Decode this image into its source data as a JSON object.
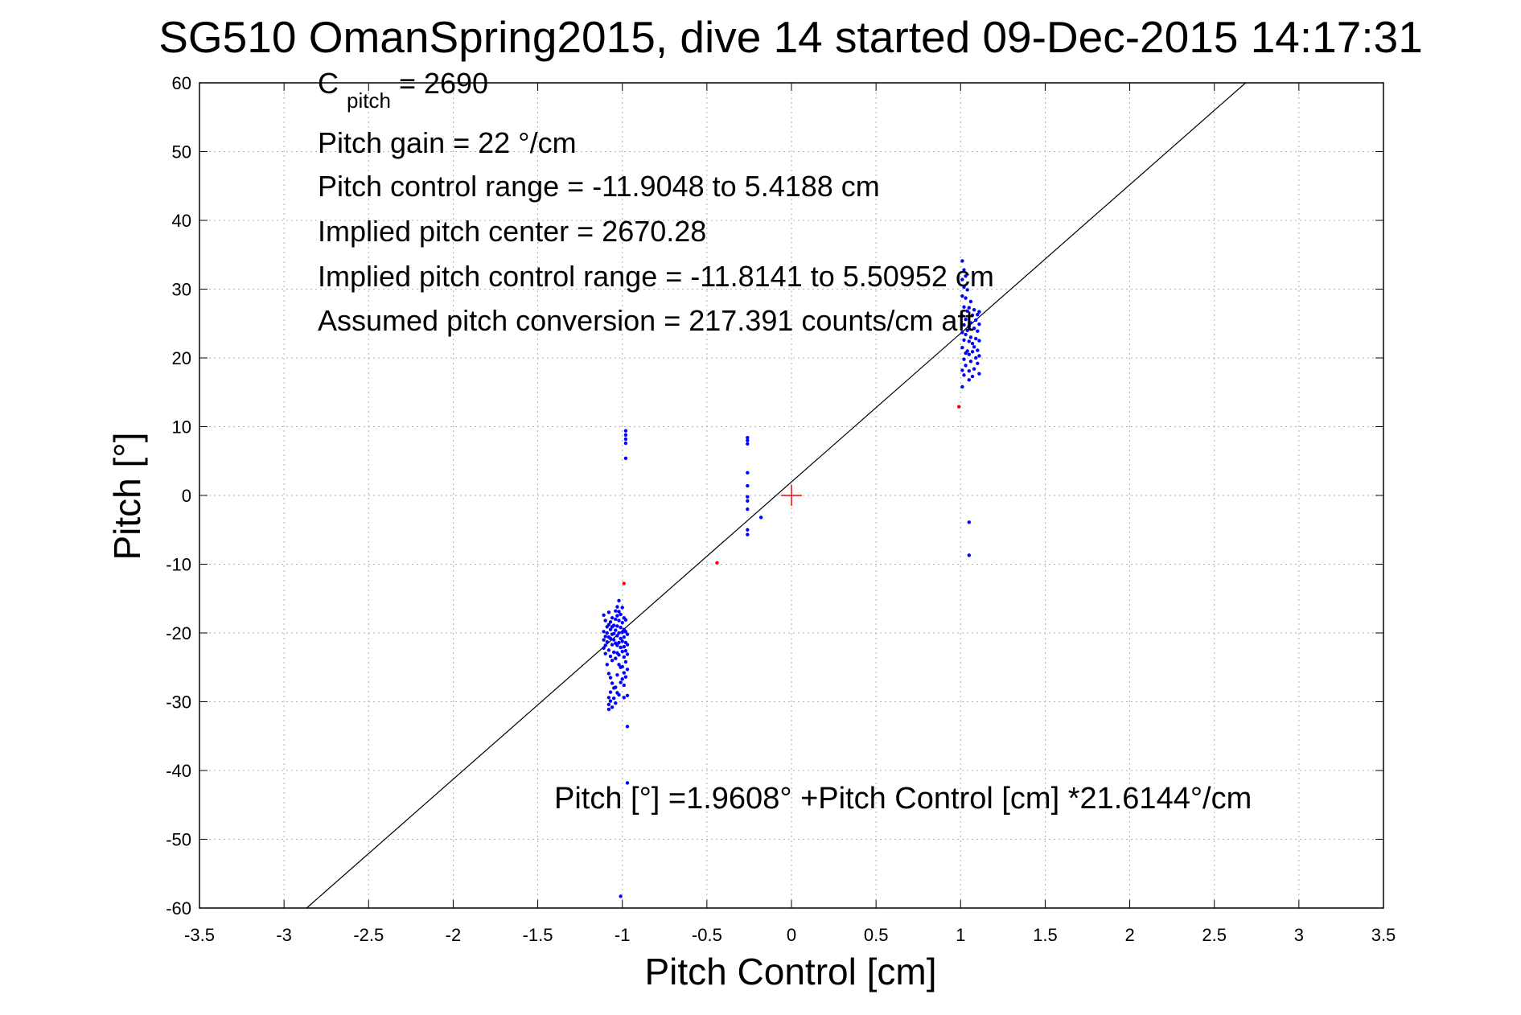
{
  "chart_data": {
    "type": "scatter",
    "title": "SG510 OmanSpring2015, dive 14 started 09-Dec-2015 14:17:31",
    "xlabel": "Pitch Control [cm]",
    "ylabel": "Pitch [°]",
    "xlim": [
      -3.5,
      3.5
    ],
    "ylim": [
      -60,
      60
    ],
    "xticks": [
      -3.5,
      -3,
      -2.5,
      -2,
      -1.5,
      -1,
      -0.5,
      0,
      0.5,
      1,
      1.5,
      2,
      2.5,
      3,
      3.5
    ],
    "yticks": [
      -60,
      -50,
      -40,
      -30,
      -20,
      -10,
      0,
      10,
      20,
      30,
      40,
      50,
      60
    ],
    "xtick_labels": [
      "-3.5",
      "-3",
      "-2.5",
      "-2",
      "-1.5",
      "-1",
      "-0.5",
      "0",
      "0.5",
      "1",
      "1.5",
      "2",
      "2.5",
      "3",
      "3.5"
    ],
    "ytick_labels": [
      "-60",
      "-50",
      "-40",
      "-30",
      "-20",
      "-10",
      "0",
      "10",
      "20",
      "30",
      "40",
      "50",
      "60"
    ],
    "grid": true,
    "annotations": {
      "c_pitch": {
        "prefix": "C",
        "subscript": "pitch",
        "suffix": " = 2690"
      },
      "lines": [
        "Pitch gain = 22 °/cm",
        "Pitch control range = -11.9048 to 5.4188 cm",
        "Implied pitch center = 2670.28",
        "Implied pitch control range = -11.8141 to 5.50952 cm",
        "Assumed pitch conversion = 217.391 counts/cm aft"
      ],
      "equation": "Pitch [°] =1.9608° +Pitch Control [cm] *21.6144°/cm"
    },
    "fit_line": {
      "intercept": 1.9608,
      "slope": 21.6144,
      "color": "#000000"
    },
    "center_marker": {
      "x": 0,
      "y": 0,
      "color": "#ff0000"
    },
    "series": [
      {
        "color": "#0000ff",
        "points": [
          [
            -1.11,
            -17.4
          ],
          [
            -1.11,
            -19.8
          ],
          [
            -1.11,
            -21.0
          ],
          [
            -1.11,
            -22.2
          ],
          [
            -1.1,
            -18.2
          ],
          [
            -1.1,
            -20.5
          ],
          [
            -1.1,
            -21.8
          ],
          [
            -1.1,
            -23.0
          ],
          [
            -1.09,
            -19.1
          ],
          [
            -1.09,
            -20.0
          ],
          [
            -1.09,
            -21.3
          ],
          [
            -1.09,
            -24.6
          ],
          [
            -1.08,
            -17.0
          ],
          [
            -1.08,
            -18.8
          ],
          [
            -1.08,
            -20.6
          ],
          [
            -1.08,
            -22.5
          ],
          [
            -1.08,
            -25.9
          ],
          [
            -1.08,
            -29.4
          ],
          [
            -1.08,
            -30.4
          ],
          [
            -1.08,
            -31.1
          ],
          [
            -1.07,
            -18.4
          ],
          [
            -1.07,
            -19.5
          ],
          [
            -1.07,
            -20.8
          ],
          [
            -1.07,
            -23.4
          ],
          [
            -1.07,
            -26.5
          ],
          [
            -1.07,
            -28.6
          ],
          [
            -1.07,
            -29.9
          ],
          [
            -1.06,
            -17.8
          ],
          [
            -1.06,
            -19.1
          ],
          [
            -1.06,
            -20.2
          ],
          [
            -1.06,
            -21.7
          ],
          [
            -1.06,
            -24.0
          ],
          [
            -1.06,
            -27.3
          ],
          [
            -1.06,
            -30.8
          ],
          [
            -1.05,
            -18.9
          ],
          [
            -1.05,
            -20.1
          ],
          [
            -1.05,
            -21.0
          ],
          [
            -1.05,
            -22.8
          ],
          [
            -1.05,
            -28.0
          ],
          [
            -1.05,
            -29.5
          ],
          [
            -1.04,
            -16.8
          ],
          [
            -1.04,
            -18.0
          ],
          [
            -1.04,
            -19.6
          ],
          [
            -1.04,
            -21.5
          ],
          [
            -1.04,
            -23.7
          ],
          [
            -1.04,
            -27.9
          ],
          [
            -1.04,
            -30.2
          ],
          [
            -1.03,
            -16.2
          ],
          [
            -1.03,
            -17.5
          ],
          [
            -1.03,
            -19.0
          ],
          [
            -1.03,
            -20.4
          ],
          [
            -1.03,
            -21.8
          ],
          [
            -1.03,
            -22.9
          ],
          [
            -1.03,
            -26.1
          ],
          [
            -1.03,
            -28.7
          ],
          [
            -1.02,
            -15.3
          ],
          [
            -1.02,
            -16.9
          ],
          [
            -1.02,
            -18.2
          ],
          [
            -1.02,
            -20.0
          ],
          [
            -1.02,
            -21.4
          ],
          [
            -1.02,
            -23.2
          ],
          [
            -1.02,
            -24.6
          ],
          [
            -1.02,
            -29.0
          ],
          [
            -1.01,
            -17.3
          ],
          [
            -1.01,
            -19.2
          ],
          [
            -1.01,
            -20.8
          ],
          [
            -1.01,
            -22.1
          ],
          [
            -1.01,
            -25.0
          ],
          [
            -1.01,
            -27.2
          ],
          [
            -1.01,
            -58.3
          ],
          [
            -1.0,
            -16.3
          ],
          [
            -1.0,
            -18.5
          ],
          [
            -1.0,
            -19.9
          ],
          [
            -1.0,
            -21.2
          ],
          [
            -1.0,
            -22.7
          ],
          [
            -1.0,
            -24.9
          ],
          [
            -1.0,
            -26.7
          ],
          [
            -0.99,
            -17.8
          ],
          [
            -0.99,
            -19.5
          ],
          [
            -0.99,
            -20.6
          ],
          [
            -0.99,
            -22.0
          ],
          [
            -0.99,
            -23.5
          ],
          [
            -0.99,
            -25.8
          ],
          [
            -0.99,
            -27.6
          ],
          [
            -0.99,
            -29.4
          ],
          [
            -0.98,
            -18.1
          ],
          [
            -0.98,
            -19.8
          ],
          [
            -0.98,
            -21.4
          ],
          [
            -0.98,
            -22.6
          ],
          [
            -0.98,
            -24.2
          ],
          [
            -0.98,
            -26.4
          ],
          [
            -0.97,
            -20.2
          ],
          [
            -0.97,
            -21.7
          ],
          [
            -0.97,
            -23.1
          ],
          [
            -0.97,
            -25.3
          ],
          [
            -0.97,
            -29.1
          ],
          [
            -0.97,
            -33.6
          ],
          [
            -0.97,
            -41.8
          ],
          [
            -0.98,
            5.4
          ],
          [
            -0.98,
            7.6
          ],
          [
            -0.98,
            8.2
          ],
          [
            -0.98,
            8.8
          ],
          [
            -0.98,
            9.4
          ],
          [
            -0.26,
            7.5
          ],
          [
            -0.26,
            8.0
          ],
          [
            -0.26,
            8.4
          ],
          [
            -0.26,
            3.3
          ],
          [
            -0.26,
            1.4
          ],
          [
            -0.26,
            -0.2
          ],
          [
            -0.26,
            -0.8
          ],
          [
            -0.26,
            -2.0
          ],
          [
            -0.26,
            -5.0
          ],
          [
            -0.26,
            -5.7
          ],
          [
            -0.18,
            -3.2
          ],
          [
            1.01,
            15.8
          ],
          [
            1.01,
            18.2
          ],
          [
            1.01,
            21.5
          ],
          [
            1.01,
            23.7
          ],
          [
            1.01,
            26.1
          ],
          [
            1.01,
            29.0
          ],
          [
            1.01,
            31.4
          ],
          [
            1.01,
            34.1
          ],
          [
            1.02,
            17.5
          ],
          [
            1.02,
            19.8
          ],
          [
            1.02,
            22.6
          ],
          [
            1.02,
            24.8
          ],
          [
            1.02,
            27.4
          ],
          [
            1.02,
            30.3
          ],
          [
            1.02,
            32.8
          ],
          [
            1.03,
            18.9
          ],
          [
            1.03,
            20.7
          ],
          [
            1.03,
            23.4
          ],
          [
            1.03,
            25.6
          ],
          [
            1.03,
            28.7
          ],
          [
            1.03,
            31.9
          ],
          [
            1.04,
            21.0
          ],
          [
            1.04,
            24.0
          ],
          [
            1.04,
            26.8
          ],
          [
            1.04,
            29.9
          ],
          [
            1.05,
            16.8
          ],
          [
            1.05,
            18.1
          ],
          [
            1.05,
            20.5
          ],
          [
            1.05,
            22.4
          ],
          [
            1.05,
            24.6
          ],
          [
            1.05,
            27.3
          ],
          [
            1.05,
            -3.9
          ],
          [
            1.05,
            -8.7
          ],
          [
            1.06,
            19.5
          ],
          [
            1.06,
            23.0
          ],
          [
            1.06,
            25.1
          ],
          [
            1.06,
            28.2
          ],
          [
            1.07,
            17.3
          ],
          [
            1.07,
            20.9
          ],
          [
            1.07,
            22.1
          ],
          [
            1.07,
            26.2
          ],
          [
            1.08,
            18.4
          ],
          [
            1.08,
            21.6
          ],
          [
            1.08,
            24.3
          ],
          [
            1.08,
            27.0
          ],
          [
            1.09,
            20.0
          ],
          [
            1.09,
            22.8
          ],
          [
            1.09,
            25.5
          ],
          [
            1.1,
            19.2
          ],
          [
            1.1,
            21.1
          ],
          [
            1.1,
            23.9
          ],
          [
            1.1,
            26.3
          ],
          [
            1.11,
            17.7
          ],
          [
            1.11,
            20.3
          ],
          [
            1.11,
            22.5
          ],
          [
            1.11,
            24.9
          ],
          [
            1.11,
            26.7
          ]
        ]
      },
      {
        "color": "#ff0000",
        "points": [
          [
            -0.99,
            -12.8
          ],
          [
            -0.44,
            -9.8
          ],
          [
            0.99,
            12.9
          ]
        ]
      }
    ]
  }
}
